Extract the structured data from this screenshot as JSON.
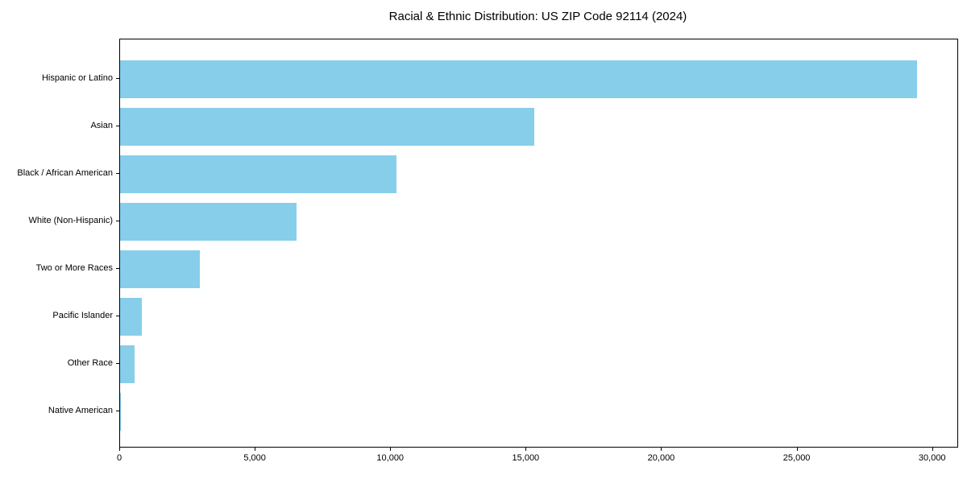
{
  "chart_data": {
    "type": "bar",
    "orientation": "horizontal",
    "title": "Racial & Ethnic Distribution: US ZIP Code 92114 (2024)",
    "categories": [
      "Hispanic or Latino",
      "Asian",
      "Black / African American",
      "White (Non-Hispanic)",
      "Two or More Races",
      "Pacific Islander",
      "Other Race",
      "Native American"
    ],
    "values": [
      29400,
      15300,
      10200,
      6500,
      2950,
      800,
      550,
      30
    ],
    "xlabel": "",
    "ylabel": "",
    "xlim": [
      0,
      30900
    ],
    "xticks": [
      0,
      5000,
      10000,
      15000,
      20000,
      25000,
      30000
    ],
    "xtick_labels": [
      "0",
      "5,000",
      "10,000",
      "15,000",
      "20,000",
      "25,000",
      "30,000"
    ],
    "bar_color": "#87CEEB",
    "axis_color": "#000000",
    "background_color": "#ffffff",
    "grid": false,
    "legend": null
  }
}
